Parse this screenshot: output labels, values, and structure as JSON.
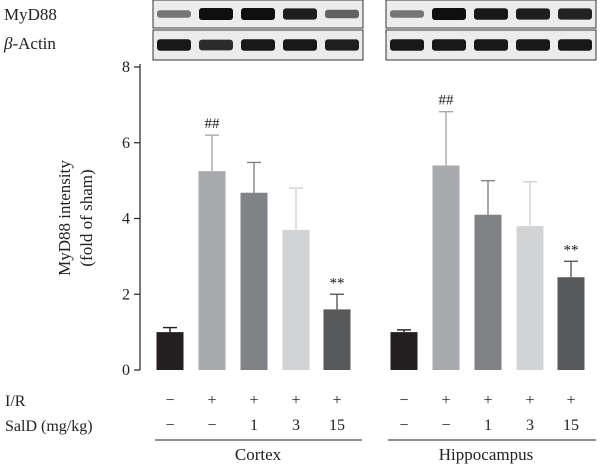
{
  "blot": {
    "rows": [
      {
        "label": "MyD88",
        "bands": {
          "Cortex": [
            0.45,
            1.0,
            1.0,
            0.92,
            0.55
          ],
          "Hippocampus": [
            0.45,
            1.0,
            0.95,
            0.92,
            0.9
          ]
        }
      },
      {
        "label_symbol": "β",
        "label_rest": "-Actin",
        "bands": {
          "Cortex": [
            0.95,
            0.85,
            0.95,
            0.95,
            0.92
          ],
          "Hippocampus": [
            0.95,
            0.95,
            0.95,
            0.95,
            0.95
          ]
        }
      }
    ]
  },
  "condition_rows": [
    {
      "label": "I/R",
      "values": [
        "−",
        "+",
        "+",
        "+",
        "+"
      ]
    },
    {
      "label": "SalD (mg/kg)",
      "values": [
        "−",
        "−",
        "1",
        "3",
        "15"
      ]
    }
  ],
  "chart_data": {
    "type": "bar",
    "ylabel_line1": "MyD88 intensity",
    "ylabel_line2": "(fold of sham)",
    "ylim": [
      0,
      8
    ],
    "yticks": [
      "0",
      "2",
      "4",
      "6",
      "8"
    ],
    "bar_colors": [
      "#231f20",
      "#a7a9ac",
      "#808285",
      "#d1d3d4",
      "#58595b"
    ],
    "groups": [
      {
        "name": "Cortex",
        "values": [
          1.0,
          5.25,
          4.68,
          3.7,
          1.6
        ],
        "errors": [
          0.12,
          0.95,
          0.8,
          1.1,
          0.4
        ],
        "annotations": [
          "",
          "##",
          "",
          "",
          "**"
        ]
      },
      {
        "name": "Hippocampus",
        "values": [
          1.0,
          5.4,
          4.1,
          3.8,
          2.45
        ],
        "errors": [
          0.06,
          1.42,
          0.9,
          1.17,
          0.42
        ],
        "annotations": [
          "",
          "##",
          "",
          "",
          "**"
        ]
      }
    ]
  }
}
